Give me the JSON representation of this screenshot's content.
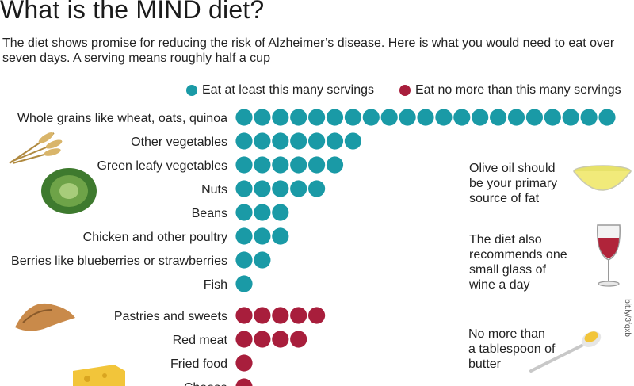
{
  "title": "What is the MIND diet?",
  "subtitle": "The diet shows promise for reducing the risk of Alzheimer’s disease. Here is what you would need to eat over seven days. A serving means roughly half a cup",
  "legend": {
    "at_least": "Eat at least this many servings",
    "no_more": "Eat no more than this many servings"
  },
  "colors": {
    "at_least": "#1a9aa6",
    "no_more": "#a81e3c"
  },
  "side_notes": {
    "olive_oil": "Olive oil should be your primary source of fat",
    "wine": "The diet also recommends one small glass of wine a day",
    "butter": "No more than a tablespoon of butter"
  },
  "credit": "bit.ly/3fqxb",
  "chart_data": {
    "type": "dot-plot",
    "title": "What is the MIND diet?",
    "unit": "servings per week",
    "series": [
      {
        "name": "Eat at least this many servings",
        "color": "#1a9aa6",
        "categories": [
          "Whole grains like wheat, oats, quinoa",
          "Other vegetables",
          "Green leafy vegetables",
          "Nuts",
          "Beans",
          "Chicken and other poultry",
          "Berries like blueberries or strawberries",
          "Fish"
        ],
        "values": [
          21,
          7,
          6,
          5,
          3,
          3,
          2,
          1
        ]
      },
      {
        "name": "Eat no more than this many servings",
        "color": "#a81e3c",
        "categories": [
          "Pastries and sweets",
          "Red meat",
          "Fried food",
          "Cheese"
        ],
        "values": [
          5,
          4,
          1,
          1
        ]
      }
    ]
  }
}
